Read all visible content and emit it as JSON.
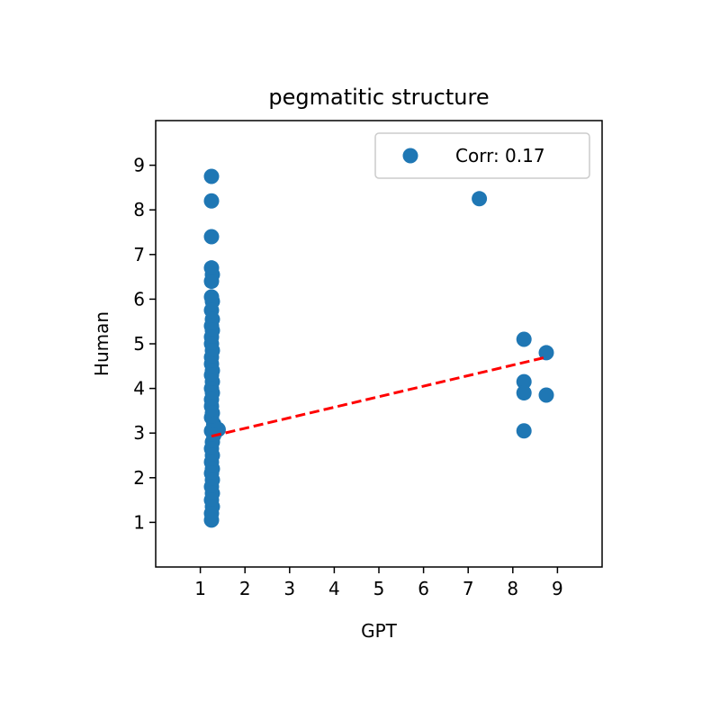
{
  "chart_data": {
    "type": "scatter",
    "title": "pegmatitic structure",
    "xlabel": "GPT",
    "ylabel": "Human",
    "xlim": [
      0,
      10
    ],
    "ylim": [
      0,
      10
    ],
    "xticks": [
      1,
      2,
      3,
      4,
      5,
      6,
      7,
      8,
      9
    ],
    "yticks": [
      1,
      2,
      3,
      4,
      5,
      6,
      7,
      8,
      9
    ],
    "grid": false,
    "legend": {
      "placement": "top-right",
      "entries": [
        {
          "label": "Corr: 0.17",
          "marker": "circle"
        }
      ]
    },
    "series": [
      {
        "name": "Corr: 0.17",
        "color": "#1f77b4",
        "points": [
          [
            1.25,
            8.75
          ],
          [
            1.25,
            8.2
          ],
          [
            1.25,
            7.4
          ],
          [
            1.25,
            6.7
          ],
          [
            1.27,
            6.55
          ],
          [
            1.25,
            6.4
          ],
          [
            1.25,
            6.05
          ],
          [
            1.27,
            5.95
          ],
          [
            1.25,
            5.75
          ],
          [
            1.27,
            5.55
          ],
          [
            1.25,
            5.4
          ],
          [
            1.27,
            5.3
          ],
          [
            1.25,
            5.15
          ],
          [
            1.25,
            5.0
          ],
          [
            1.27,
            4.85
          ],
          [
            1.25,
            4.7
          ],
          [
            1.25,
            4.55
          ],
          [
            1.27,
            4.4
          ],
          [
            1.25,
            4.3
          ],
          [
            1.27,
            4.15
          ],
          [
            1.25,
            4.0
          ],
          [
            1.27,
            3.9
          ],
          [
            1.25,
            3.75
          ],
          [
            1.25,
            3.6
          ],
          [
            1.27,
            3.45
          ],
          [
            1.25,
            3.35
          ],
          [
            1.3,
            3.2
          ],
          [
            1.25,
            3.05
          ],
          [
            1.4,
            3.08
          ],
          [
            1.3,
            2.95
          ],
          [
            1.27,
            2.8
          ],
          [
            1.25,
            2.65
          ],
          [
            1.27,
            2.5
          ],
          [
            1.25,
            2.35
          ],
          [
            1.27,
            2.2
          ],
          [
            1.25,
            2.1
          ],
          [
            1.27,
            1.95
          ],
          [
            1.25,
            1.8
          ],
          [
            1.27,
            1.65
          ],
          [
            1.25,
            1.5
          ],
          [
            1.27,
            1.35
          ],
          [
            1.25,
            1.2
          ],
          [
            1.25,
            1.05
          ],
          [
            7.25,
            8.25
          ],
          [
            8.25,
            5.1
          ],
          [
            8.25,
            4.15
          ],
          [
            8.25,
            3.9
          ],
          [
            8.25,
            3.05
          ],
          [
            8.75,
            4.8
          ],
          [
            8.75,
            3.85
          ]
        ]
      }
    ],
    "trendline": {
      "color": "#ff0000",
      "style": "dashed",
      "x": [
        1.25,
        8.75
      ],
      "y": [
        2.93,
        4.7
      ]
    }
  }
}
